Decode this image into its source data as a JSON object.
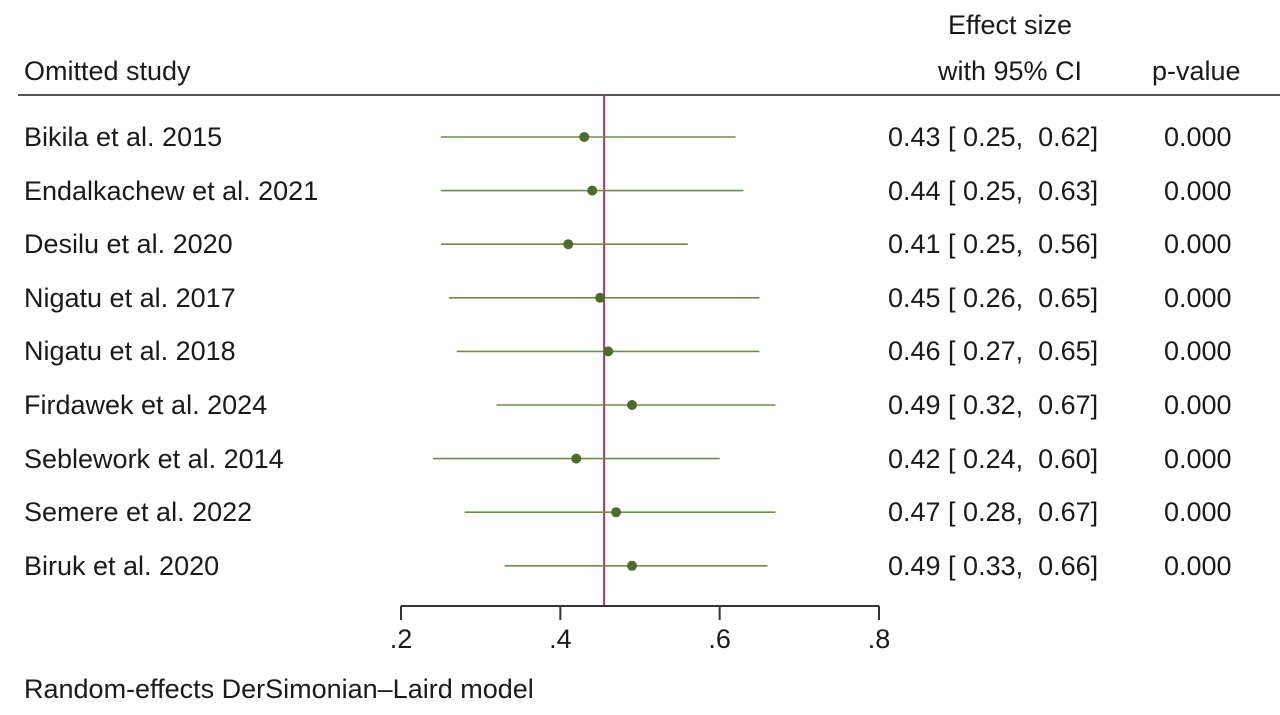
{
  "headers": {
    "omitted_study": "Omitted study",
    "effect_line1": "Effect size",
    "effect_line2": "with 95% CI",
    "pvalue": "p-value"
  },
  "footnote": "Random-effects DerSimonian–Laird model",
  "colors": {
    "ci_line": "#6b8e4a",
    "point": "#4d6b2d",
    "reference_line": "#b0306a",
    "axis": "#333333"
  },
  "chart_data": {
    "type": "forest",
    "xlim": [
      0.2,
      0.8
    ],
    "ticks": [
      0.2,
      0.4,
      0.6,
      0.8
    ],
    "tick_labels": [
      ".2",
      ".4",
      ".6",
      ".8"
    ],
    "reference_line": 0.455,
    "rows": [
      {
        "study": "Bikila et al. 2015",
        "es": 0.43,
        "lo": 0.25,
        "hi": 0.62,
        "ci_text": "0.43 [ 0.25,  0.62]",
        "p": "0.000"
      },
      {
        "study": "Endalkachew et al. 2021",
        "es": 0.44,
        "lo": 0.25,
        "hi": 0.63,
        "ci_text": "0.44 [ 0.25,  0.63]",
        "p": "0.000"
      },
      {
        "study": "Desilu et al. 2020",
        "es": 0.41,
        "lo": 0.25,
        "hi": 0.56,
        "ci_text": "0.41 [ 0.25,  0.56]",
        "p": "0.000"
      },
      {
        "study": "Nigatu et al. 2017",
        "es": 0.45,
        "lo": 0.26,
        "hi": 0.65,
        "ci_text": "0.45 [ 0.26,  0.65]",
        "p": "0.000"
      },
      {
        "study": "Nigatu et al. 2018",
        "es": 0.46,
        "lo": 0.27,
        "hi": 0.65,
        "ci_text": "0.46 [ 0.27,  0.65]",
        "p": "0.000"
      },
      {
        "study": "Firdawek et al. 2024",
        "es": 0.49,
        "lo": 0.32,
        "hi": 0.67,
        "ci_text": "0.49 [ 0.32,  0.67]",
        "p": "0.000"
      },
      {
        "study": "Seblework et al. 2014",
        "es": 0.42,
        "lo": 0.24,
        "hi": 0.6,
        "ci_text": "0.42 [ 0.24,  0.60]",
        "p": "0.000"
      },
      {
        "study": "Semere et al. 2022",
        "es": 0.47,
        "lo": 0.28,
        "hi": 0.67,
        "ci_text": "0.47 [ 0.28,  0.67]",
        "p": "0.000"
      },
      {
        "study": "Biruk et al. 2020",
        "es": 0.49,
        "lo": 0.33,
        "hi": 0.66,
        "ci_text": "0.49 [ 0.33,  0.66]",
        "p": "0.000"
      }
    ]
  }
}
